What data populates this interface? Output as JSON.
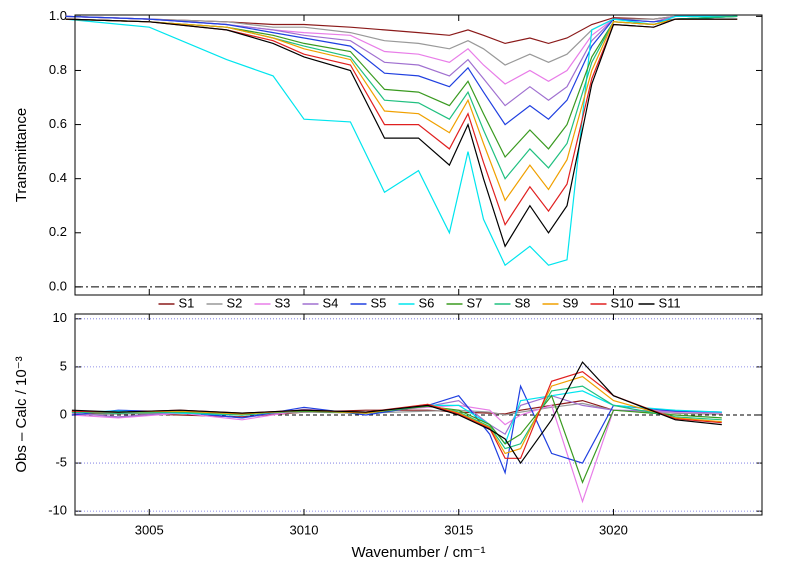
{
  "chart_data": [
    {
      "type": "line",
      "ylabel": "Transmittance",
      "x": [
        3002.3,
        3005,
        3007.5,
        3009,
        3010,
        3011.5,
        3012.6,
        3013.7,
        3014.7,
        3015.3,
        3015.8,
        3016.5,
        3017.3,
        3017.9,
        3018.5,
        3019.3,
        3020,
        3021.3,
        3022,
        3024
      ],
      "xlim": [
        3002.6,
        3024.8
      ],
      "ylim": [
        -0.03,
        1.005
      ],
      "yticks": [
        {
          "value": 0,
          "label": "0.0"
        },
        0.2,
        0.4,
        0.6,
        0.8,
        {
          "value": 1,
          "label": "1.0"
        }
      ],
      "legend": "bottom",
      "series": [
        {
          "name": "S1",
          "color": "#8b1a1a",
          "values": [
            1,
            0.99,
            0.98,
            0.97,
            0.97,
            0.96,
            0.95,
            0.94,
            0.93,
            0.95,
            0.93,
            0.9,
            0.92,
            0.9,
            0.92,
            0.97,
            0.995,
            0.99,
            1,
            1
          ]
        },
        {
          "name": "S2",
          "color": "#999999",
          "values": [
            1,
            0.99,
            0.98,
            0.96,
            0.96,
            0.94,
            0.91,
            0.9,
            0.88,
            0.91,
            0.88,
            0.82,
            0.86,
            0.83,
            0.86,
            0.95,
            0.99,
            0.99,
            1,
            1
          ]
        },
        {
          "name": "S3",
          "color": "#e87de8",
          "values": [
            1,
            0.99,
            0.97,
            0.95,
            0.94,
            0.93,
            0.87,
            0.86,
            0.83,
            0.88,
            0.82,
            0.75,
            0.8,
            0.76,
            0.8,
            0.93,
            0.99,
            0.98,
            1,
            1
          ]
        },
        {
          "name": "S4",
          "color": "#a070d0",
          "values": [
            1,
            0.99,
            0.97,
            0.95,
            0.93,
            0.91,
            0.83,
            0.82,
            0.78,
            0.84,
            0.77,
            0.67,
            0.74,
            0.69,
            0.74,
            0.91,
            0.99,
            0.98,
            1,
            1
          ]
        },
        {
          "name": "S5",
          "color": "#2040e0",
          "values": [
            1,
            0.99,
            0.97,
            0.94,
            0.92,
            0.89,
            0.79,
            0.78,
            0.74,
            0.81,
            0.72,
            0.6,
            0.67,
            0.62,
            0.69,
            0.89,
            0.99,
            0.98,
            0.99,
            1
          ]
        },
        {
          "name": "S6",
          "color": "#00e5ee",
          "values": [
            0.99,
            0.96,
            0.84,
            0.78,
            0.62,
            0.61,
            0.35,
            0.43,
            0.2,
            0.5,
            0.25,
            0.08,
            0.15,
            0.08,
            0.1,
            0.95,
            0.99,
            0.97,
            1,
            1
          ]
        },
        {
          "name": "S7",
          "color": "#3a9a20",
          "values": [
            0.99,
            0.98,
            0.96,
            0.93,
            0.9,
            0.87,
            0.73,
            0.72,
            0.67,
            0.76,
            0.64,
            0.48,
            0.58,
            0.51,
            0.6,
            0.85,
            0.98,
            0.97,
            0.99,
            1
          ]
        },
        {
          "name": "S8",
          "color": "#20c080",
          "values": [
            0.99,
            0.98,
            0.96,
            0.92,
            0.89,
            0.85,
            0.69,
            0.68,
            0.62,
            0.72,
            0.58,
            0.4,
            0.51,
            0.44,
            0.53,
            0.83,
            0.98,
            0.97,
            0.99,
            1
          ]
        },
        {
          "name": "S9",
          "color": "#f0a000",
          "values": [
            0.99,
            0.98,
            0.96,
            0.92,
            0.88,
            0.84,
            0.65,
            0.64,
            0.57,
            0.69,
            0.53,
            0.32,
            0.45,
            0.36,
            0.47,
            0.8,
            0.98,
            0.97,
            0.99,
            0.99
          ]
        },
        {
          "name": "S10",
          "color": "#e02020",
          "values": [
            0.99,
            0.98,
            0.95,
            0.91,
            0.86,
            0.82,
            0.6,
            0.6,
            0.51,
            0.64,
            0.46,
            0.23,
            0.37,
            0.28,
            0.38,
            0.77,
            0.97,
            0.96,
            0.99,
            0.99
          ]
        },
        {
          "name": "S11",
          "color": "#000000",
          "values": [
            0.99,
            0.98,
            0.95,
            0.9,
            0.85,
            0.8,
            0.55,
            0.55,
            0.45,
            0.6,
            0.4,
            0.15,
            0.3,
            0.2,
            0.3,
            0.75,
            0.97,
            0.96,
            0.99,
            0.99
          ]
        }
      ]
    },
    {
      "type": "line",
      "ylabel": "Obs – Calc / 10⁻³",
      "xlabel": "Wavenumber / cm⁻¹",
      "x": [
        3002.5,
        3004,
        3006,
        3008,
        3010,
        3012,
        3014,
        3015,
        3016,
        3016.5,
        3017,
        3018,
        3019,
        3020,
        3022,
        3023.5
      ],
      "xlim": [
        3002.6,
        3024.8
      ],
      "xticks": [
        3005,
        3010,
        3015,
        3020
      ],
      "ylim": [
        -10.4,
        10.5
      ],
      "yticks": [
        -10,
        -5,
        0,
        5,
        10
      ],
      "grid": true,
      "series": [
        {
          "color": "#8b1a1a",
          "values": [
            0,
            0.2,
            0,
            -0.2,
            0.3,
            0.5,
            0.5,
            0.3,
            0.2,
            0.1,
            0.5,
            1,
            1.5,
            0.5,
            0.2,
            0.1
          ]
        },
        {
          "color": "#999999",
          "values": [
            0,
            0.1,
            0.2,
            0,
            0.3,
            0.2,
            0.4,
            0.5,
            0.3,
            0,
            0.3,
            0.8,
            1.2,
            0.5,
            0.2,
            0.1
          ]
        },
        {
          "color": "#e87de8",
          "values": [
            0,
            -0.3,
            0.2,
            -0.5,
            0.5,
            0.3,
            0.8,
            1,
            0.5,
            -1,
            0,
            1,
            -9,
            0.5,
            0.3,
            0.2
          ]
        },
        {
          "color": "#a070d0",
          "values": [
            0.2,
            -0.2,
            0.3,
            -0.3,
            0.6,
            0.2,
            0.9,
            1.5,
            -1,
            -2,
            1,
            2,
            1,
            0.5,
            0.4,
            0.3
          ]
        },
        {
          "color": "#2040e0",
          "values": [
            0,
            0.5,
            0.3,
            -0.3,
            0.8,
            0,
            1,
            2,
            -2,
            -6,
            3,
            -4,
            -5,
            1,
            0.4,
            0.3
          ]
        },
        {
          "color": "#00e5ee",
          "values": [
            0.3,
            0.4,
            0.2,
            0,
            0.5,
            0.2,
            1,
            1,
            -1,
            -3,
            1.5,
            2,
            2.5,
            1,
            0.5,
            0.3
          ]
        },
        {
          "color": "#3a9a20",
          "values": [
            0.3,
            0.2,
            0.3,
            0.1,
            0.4,
            0.2,
            0.9,
            0.5,
            -1,
            -3,
            -2,
            2,
            -7,
            0.5,
            0,
            -0.3
          ]
        },
        {
          "color": "#20c080",
          "values": [
            0.3,
            0.2,
            0.3,
            0,
            0.5,
            0.2,
            1,
            0.3,
            -1.2,
            -3.5,
            -3,
            2.5,
            3,
            1,
            -0.2,
            -0.5
          ]
        },
        {
          "color": "#f0a000",
          "values": [
            0.4,
            0.3,
            0.4,
            0.1,
            0.5,
            0.2,
            1.1,
            0.2,
            -1.3,
            -4,
            -3.5,
            3,
            4,
            1.5,
            -0.3,
            -0.7
          ]
        },
        {
          "color": "#e02020",
          "values": [
            0.4,
            0.3,
            0.5,
            0.2,
            0.5,
            0.3,
            1.1,
            0.1,
            -1.4,
            -4.5,
            -4.5,
            3.5,
            4.5,
            2,
            -0.4,
            -0.8
          ]
        },
        {
          "color": "#000000",
          "values": [
            0.5,
            0.3,
            0.5,
            0.2,
            0.5,
            0.3,
            1,
            0,
            -1.5,
            -2.5,
            -5,
            -0.5,
            5.5,
            2,
            -0.5,
            -1
          ]
        }
      ]
    }
  ]
}
